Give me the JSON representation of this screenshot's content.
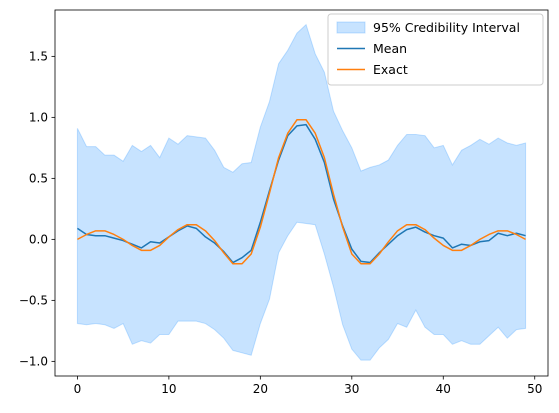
{
  "chart_data": {
    "type": "line",
    "title": "",
    "xlabel": "",
    "ylabel": "",
    "xlim": [
      -2.45,
      51.45
    ],
    "ylim": [
      -1.12,
      1.88
    ],
    "x_ticks": [
      0,
      10,
      20,
      30,
      40,
      50
    ],
    "y_ticks": [
      -1.0,
      -0.5,
      0.0,
      0.5,
      1.0,
      1.5
    ],
    "x_tick_labels": [
      "0",
      "10",
      "20",
      "30",
      "40",
      "50"
    ],
    "y_tick_labels": [
      "−1.0",
      "−0.5",
      "0.0",
      "0.5",
      "1.0",
      "1.5"
    ],
    "grid": false,
    "legend_position": "top-right",
    "x": [
      0,
      1,
      2,
      3,
      4,
      5,
      6,
      7,
      8,
      9,
      10,
      11,
      12,
      13,
      14,
      15,
      16,
      17,
      18,
      19,
      20,
      21,
      22,
      23,
      24,
      25,
      26,
      27,
      28,
      29,
      30,
      31,
      32,
      33,
      34,
      35,
      36,
      37,
      38,
      39,
      40,
      41,
      42,
      43,
      44,
      45,
      46,
      47,
      48,
      49
    ],
    "band": {
      "name": "95% Credibility Interval",
      "color": "#1e90ff",
      "opacity": 0.25,
      "upper": [
        0.91,
        0.76,
        0.76,
        0.69,
        0.69,
        0.64,
        0.77,
        0.72,
        0.77,
        0.67,
        0.83,
        0.78,
        0.85,
        0.84,
        0.83,
        0.73,
        0.59,
        0.55,
        0.62,
        0.63,
        0.92,
        1.13,
        1.44,
        1.55,
        1.69,
        1.76,
        1.52,
        1.37,
        1.05,
        0.89,
        0.75,
        0.56,
        0.59,
        0.61,
        0.65,
        0.77,
        0.86,
        0.86,
        0.85,
        0.75,
        0.77,
        0.61,
        0.73,
        0.77,
        0.82,
        0.78,
        0.83,
        0.79,
        0.77,
        0.79
      ],
      "lower": [
        -0.69,
        -0.7,
        -0.69,
        -0.7,
        -0.73,
        -0.69,
        -0.86,
        -0.83,
        -0.85,
        -0.78,
        -0.78,
        -0.67,
        -0.67,
        -0.67,
        -0.69,
        -0.74,
        -0.81,
        -0.91,
        -0.93,
        -0.95,
        -0.69,
        -0.49,
        -0.11,
        0.03,
        0.14,
        0.13,
        0.12,
        -0.12,
        -0.39,
        -0.7,
        -0.9,
        -0.99,
        -0.99,
        -0.89,
        -0.82,
        -0.69,
        -0.72,
        -0.58,
        -0.72,
        -0.78,
        -0.78,
        -0.86,
        -0.83,
        -0.86,
        -0.86,
        -0.79,
        -0.72,
        -0.81,
        -0.74,
        -0.73
      ]
    },
    "series": [
      {
        "name": "Mean",
        "color": "#1f77b4",
        "values": [
          0.09,
          0.04,
          0.03,
          0.03,
          0.01,
          -0.01,
          -0.04,
          -0.07,
          -0.02,
          -0.03,
          0.02,
          0.07,
          0.11,
          0.09,
          0.02,
          -0.03,
          -0.1,
          -0.19,
          -0.15,
          -0.09,
          0.14,
          0.4,
          0.65,
          0.85,
          0.93,
          0.94,
          0.82,
          0.63,
          0.33,
          0.11,
          -0.08,
          -0.18,
          -0.19,
          -0.11,
          -0.04,
          0.03,
          0.08,
          0.1,
          0.06,
          0.03,
          0.01,
          -0.07,
          -0.04,
          -0.05,
          -0.02,
          -0.01,
          0.05,
          0.03,
          0.05,
          0.03
        ]
      },
      {
        "name": "Exact",
        "color": "#ff7f0e",
        "values": [
          0.0,
          0.04,
          0.07,
          0.07,
          0.04,
          0.0,
          -0.05,
          -0.09,
          -0.09,
          -0.05,
          0.02,
          0.08,
          0.12,
          0.12,
          0.07,
          -0.01,
          -0.11,
          -0.2,
          -0.2,
          -0.12,
          0.1,
          0.38,
          0.67,
          0.87,
          0.98,
          0.98,
          0.87,
          0.67,
          0.37,
          0.1,
          -0.12,
          -0.2,
          -0.2,
          -0.12,
          -0.02,
          0.07,
          0.12,
          0.12,
          0.08,
          0.01,
          -0.05,
          -0.09,
          -0.09,
          -0.05,
          0.0,
          0.04,
          0.07,
          0.07,
          0.04,
          0.0
        ]
      }
    ]
  }
}
